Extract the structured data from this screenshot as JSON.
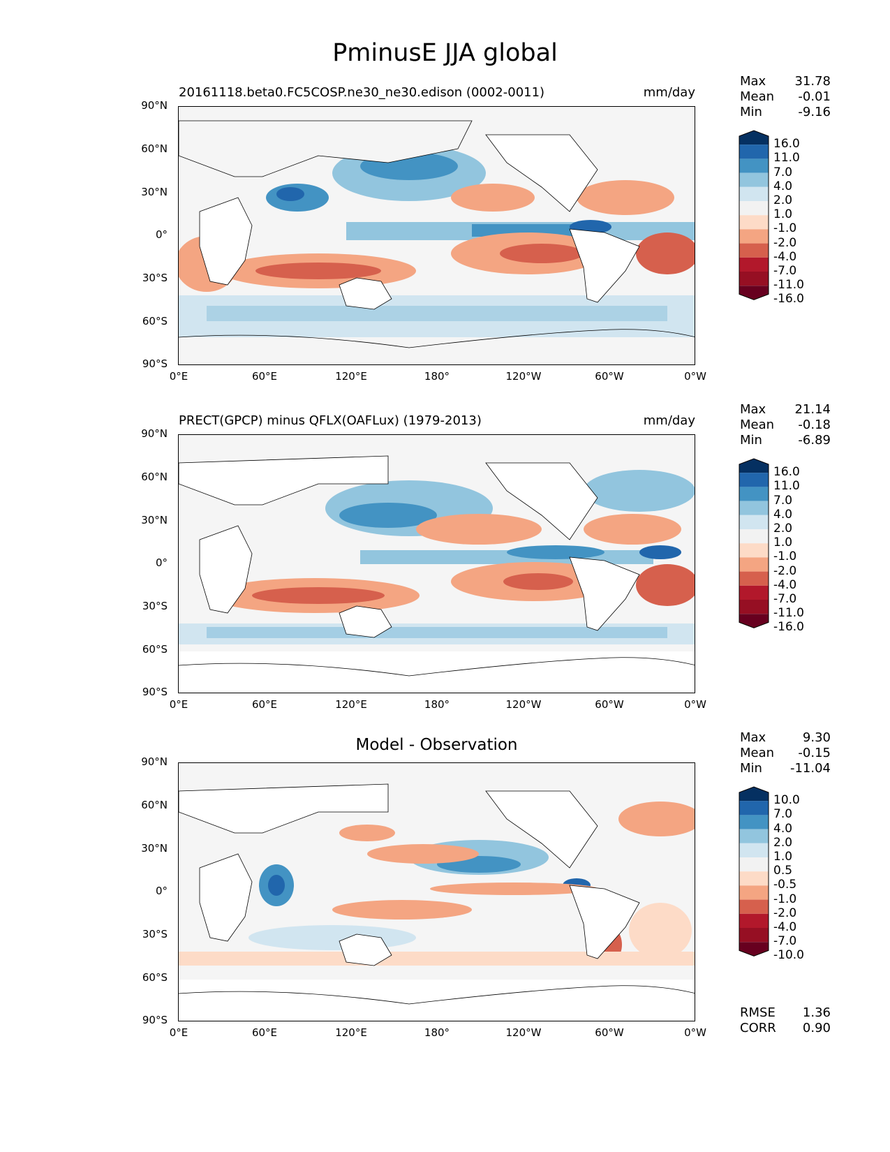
{
  "figure_title": "PminusE JJA global",
  "panels": [
    {
      "left_title": "20161118.beta0.FC5COSP.ne30_ne30.edison (0002-0011)",
      "right_title": "mm/day",
      "center_title": "",
      "stats": {
        "max_label": "Max",
        "max": "31.78",
        "mean_label": "Mean",
        "mean": "-0.01",
        "min_label": "Min",
        "min": "-9.16"
      },
      "colorbar_levels": [
        "16.0",
        "11.0",
        "7.0",
        "4.0",
        "2.0",
        "1.0",
        "-1.0",
        "-2.0",
        "-4.0",
        "-7.0",
        "-11.0",
        "-16.0"
      ]
    },
    {
      "left_title": "PRECT(GPCP) minus QFLX(OAFLux) (1979-2013)",
      "right_title": "mm/day",
      "center_title": "",
      "stats": {
        "max_label": "Max",
        "max": "21.14",
        "mean_label": "Mean",
        "mean": "-0.18",
        "min_label": "Min",
        "min": "-6.89"
      },
      "colorbar_levels": [
        "16.0",
        "11.0",
        "7.0",
        "4.0",
        "2.0",
        "1.0",
        "-1.0",
        "-2.0",
        "-4.0",
        "-7.0",
        "-11.0",
        "-16.0"
      ]
    },
    {
      "left_title": "",
      "right_title": "",
      "center_title": "Model - Observation",
      "stats": {
        "max_label": "Max",
        "max": "9.30",
        "mean_label": "Mean",
        "mean": "-0.15",
        "min_label": "Min",
        "min": "-11.04"
      },
      "colorbar_levels": [
        "10.0",
        "7.0",
        "4.0",
        "2.0",
        "1.0",
        "0.5",
        "-0.5",
        "-1.0",
        "-2.0",
        "-4.0",
        "-7.0",
        "-10.0"
      ]
    }
  ],
  "axes": {
    "y_ticks": [
      "90°N",
      "60°N",
      "30°N",
      "0°",
      "30°S",
      "60°S",
      "90°S"
    ],
    "x_ticks": [
      "0°E",
      "60°E",
      "120°E",
      "180°",
      "120°W",
      "60°W",
      "0°W"
    ]
  },
  "metrics": {
    "rmse_label": "RMSE",
    "rmse": "1.36",
    "corr_label": "CORR",
    "corr": "0.90"
  },
  "colors": {
    "colorbar": [
      "#053061",
      "#2166ac",
      "#4393c3",
      "#92c5de",
      "#d1e5f0",
      "#f2f2f2",
      "#fddbc7",
      "#f4a582",
      "#d6604d",
      "#b2182b",
      "#960f23",
      "#67001f"
    ],
    "ocean_neutral": "#f5f5f5"
  }
}
